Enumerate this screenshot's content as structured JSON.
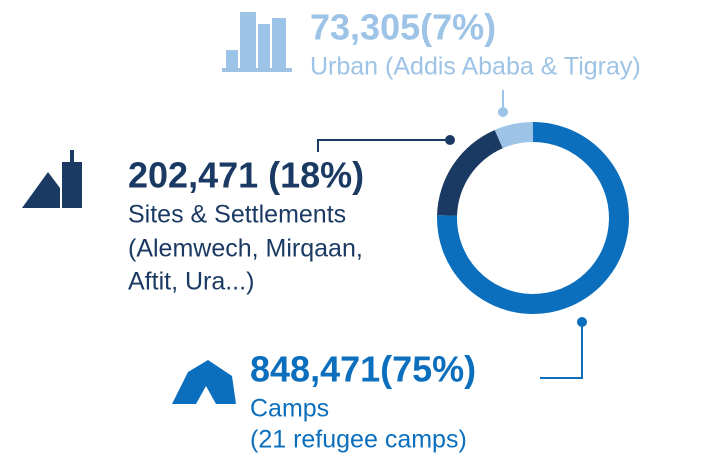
{
  "chart_data": {
    "type": "pie",
    "categories": [
      "Urban (Addis Ababa & Tigray)",
      "Sites & Settlements",
      "Camps"
    ],
    "details": [
      [],
      [
        "(Alemwech, Mirqaan,",
        "Aftit, Ura...)"
      ],
      [
        "(21 refugee camps)"
      ]
    ],
    "values": [
      73305,
      202471,
      848471
    ],
    "value_labels": [
      "73,305(7%)",
      "202,471 (18%)",
      "848,471(75%)"
    ],
    "colors": [
      "#9dc3e6",
      "#1b3a63",
      "#0b6fbd"
    ]
  }
}
